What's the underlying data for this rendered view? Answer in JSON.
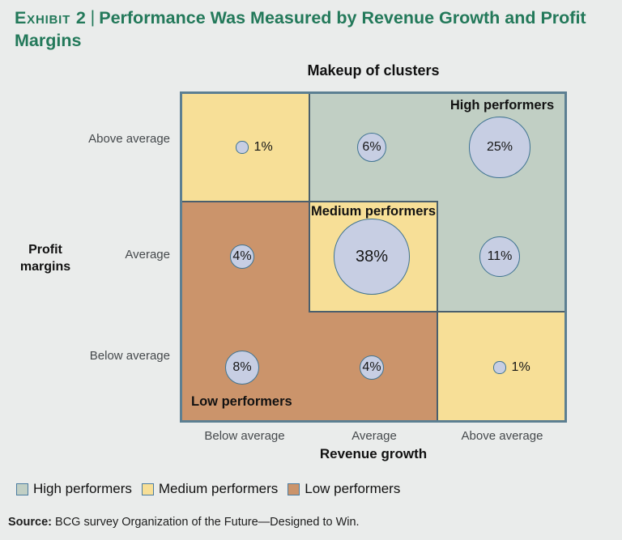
{
  "header": {
    "exhibit_label": "Exhibit 2",
    "separator": "|",
    "title": "Performance Was Measured by Revenue Growth and Profit Margins"
  },
  "chart_data": {
    "type": "bubble-matrix",
    "title": "Makeup of clusters",
    "x_axis": {
      "label": "Revenue growth",
      "categories": [
        "Below average",
        "Average",
        "Above average"
      ]
    },
    "y_axis": {
      "label": "Profit margins",
      "categories": [
        "Above average",
        "Average",
        "Below average"
      ]
    },
    "clusters": [
      {
        "name": "High performers",
        "color": "#c1cfc4"
      },
      {
        "name": "Medium performers",
        "color": "#f7df97"
      },
      {
        "name": "Low performers",
        "color": "#cb946b"
      }
    ],
    "bubble": {
      "fill": "#c7cee3",
      "stroke": "#3f7391"
    },
    "points": [
      {
        "revenue_growth": "Below average",
        "profit_margins": "Above average",
        "value_pct": 1,
        "cluster": "Medium performers"
      },
      {
        "revenue_growth": "Average",
        "profit_margins": "Above average",
        "value_pct": 6,
        "cluster": "High performers"
      },
      {
        "revenue_growth": "Above average",
        "profit_margins": "Above average",
        "value_pct": 25,
        "cluster": "High performers"
      },
      {
        "revenue_growth": "Below average",
        "profit_margins": "Average",
        "value_pct": 4,
        "cluster": "Low performers"
      },
      {
        "revenue_growth": "Average",
        "profit_margins": "Average",
        "value_pct": 38,
        "cluster": "Medium performers"
      },
      {
        "revenue_growth": "Above average",
        "profit_margins": "Average",
        "value_pct": 11,
        "cluster": "High performers"
      },
      {
        "revenue_growth": "Below average",
        "profit_margins": "Below average",
        "value_pct": 8,
        "cluster": "Low performers"
      },
      {
        "revenue_growth": "Average",
        "profit_margins": "Below average",
        "value_pct": 4,
        "cluster": "Low performers"
      },
      {
        "revenue_growth": "Above average",
        "profit_margins": "Below average",
        "value_pct": 1,
        "cluster": "Medium performers"
      }
    ]
  },
  "legend": [
    {
      "label": "High performers",
      "color": "#c1cfc4"
    },
    {
      "label": "Medium performers",
      "color": "#f7df97"
    },
    {
      "label": "Low performers",
      "color": "#cb946b"
    }
  ],
  "source": {
    "prefix": "Source:",
    "text": "BCG survey Organization of the Future—Designed to Win."
  }
}
